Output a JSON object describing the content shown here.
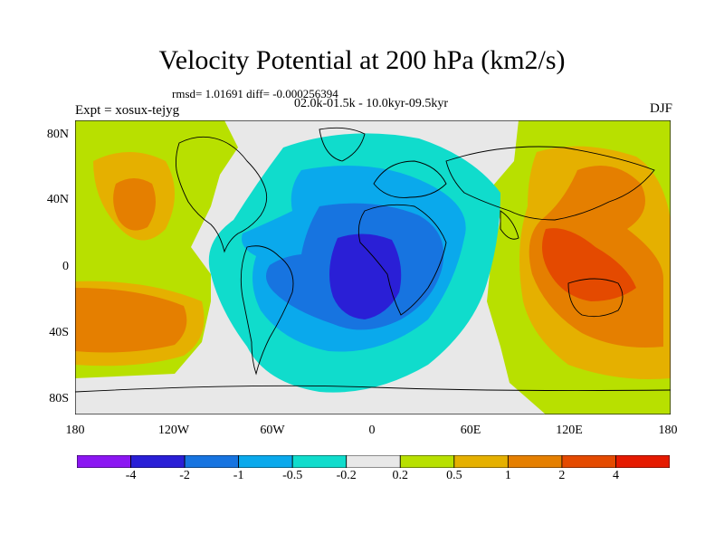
{
  "title": "Velocity Potential at 200 hPa (km2/s)",
  "stats": "rmsd= 1.01691 diff= -0.000256394",
  "subtitle": "02.0k-01.5k - 10.0kyr-09.5kyr",
  "experiment": "Expt = xosux-tejyg",
  "season": "DJF",
  "axes": {
    "y_ticks": [
      "80N",
      "40N",
      "0",
      "40S",
      "80S"
    ],
    "x_ticks": [
      "180",
      "120W",
      "60W",
      "0",
      "60E",
      "120E",
      "180"
    ]
  },
  "colorbar": {
    "colors": [
      "#8b16f2",
      "#2a1fd6",
      "#1774e0",
      "#0aa9ec",
      "#10dccc",
      "#e8e8e8",
      "#b8e000",
      "#e5b000",
      "#e57f00",
      "#e44a00",
      "#e51a00"
    ],
    "labels": [
      "-4",
      "-2",
      "-1",
      "-0.5",
      "-0.2",
      "0.2",
      "0.5",
      "1",
      "2",
      "4"
    ]
  },
  "colors": {
    "land_outline": "#000000",
    "background": "#e8e8e8"
  }
}
